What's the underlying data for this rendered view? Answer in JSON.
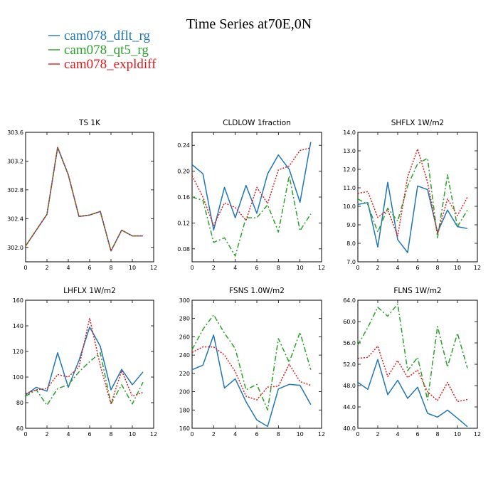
{
  "figure": {
    "title": "Time Series at70E,0N"
  },
  "legend": [
    {
      "label": "cam078_dflt_rg",
      "color": "#1f77b4",
      "dash": "solid"
    },
    {
      "label": "cam078_qt5_rg",
      "color": "#2ca02c",
      "dash": "dashdot"
    },
    {
      "label": "cam078_expldiff",
      "color": "#e31a1c",
      "dash": "dotted"
    }
  ],
  "chart_data": [
    {
      "type": "line",
      "title": "TS   1K",
      "x": [
        0,
        1,
        2,
        3,
        4,
        5,
        6,
        7,
        8,
        9,
        10,
        11
      ],
      "xlim": [
        0,
        12
      ],
      "xticks": [
        0,
        2,
        4,
        6,
        8,
        10,
        12
      ],
      "ylim": [
        301.8,
        303.6
      ],
      "yticks": [
        302.0,
        302.4,
        302.8,
        303.2,
        303.6
      ],
      "ytick_labels": [
        "302.0",
        "302.4",
        "302.8",
        "303.2",
        "303.6"
      ],
      "series": [
        {
          "name": "cam078_dflt_rg",
          "values": [
            302.02,
            302.24,
            302.46,
            303.39,
            303.01,
            302.43,
            302.45,
            302.5,
            301.95,
            302.24,
            302.16,
            302.16
          ]
        },
        {
          "name": "cam078_qt5_rg",
          "values": [
            302.02,
            302.24,
            302.46,
            303.39,
            303.01,
            302.43,
            302.45,
            302.5,
            301.95,
            302.24,
            302.16,
            302.16
          ]
        },
        {
          "name": "cam078_expldiff",
          "values": [
            302.02,
            302.24,
            302.46,
            303.39,
            303.01,
            302.43,
            302.45,
            302.5,
            301.95,
            302.24,
            302.16,
            302.16
          ]
        }
      ]
    },
    {
      "type": "line",
      "title": "CLDLOW   1fraction",
      "x": [
        0,
        1,
        2,
        3,
        4,
        5,
        6,
        7,
        8,
        9,
        10,
        11
      ],
      "xlim": [
        0,
        12
      ],
      "xticks": [
        0,
        2,
        4,
        6,
        8,
        10,
        12
      ],
      "ylim": [
        0.06,
        0.26
      ],
      "yticks": [
        0.08,
        0.12,
        0.16,
        0.2,
        0.24
      ],
      "ytick_labels": [
        "0.08",
        "0.12",
        "0.16",
        "0.20",
        "0.24"
      ],
      "series": [
        {
          "name": "cam078_dflt_rg",
          "values": [
            0.21,
            0.196,
            0.109,
            0.175,
            0.128,
            0.178,
            0.135,
            0.196,
            0.225,
            0.203,
            0.152,
            0.245
          ]
        },
        {
          "name": "cam078_qt5_rg",
          "values": [
            0.16,
            0.155,
            0.09,
            0.097,
            0.069,
            0.128,
            0.128,
            0.148,
            0.106,
            0.193,
            0.108,
            0.134
          ]
        },
        {
          "name": "cam078_expldiff",
          "values": [
            0.193,
            0.16,
            0.116,
            0.151,
            0.144,
            0.124,
            0.175,
            0.15,
            0.202,
            0.208,
            0.232,
            0.236
          ]
        }
      ]
    },
    {
      "type": "line",
      "title": "SHFLX   1W/m2",
      "x": [
        0,
        1,
        2,
        3,
        4,
        5,
        6,
        7,
        8,
        9,
        10,
        11
      ],
      "xlim": [
        0,
        12
      ],
      "xticks": [
        0,
        2,
        4,
        6,
        8,
        10,
        12
      ],
      "ylim": [
        7.0,
        14.0
      ],
      "yticks": [
        7.0,
        8.0,
        9.0,
        10.0,
        11.0,
        12.0,
        13.0,
        14.0
      ],
      "ytick_labels": [
        "7.0",
        "8.0",
        "9.0",
        "10.0",
        "11.0",
        "12.0",
        "13.0",
        "14.0"
      ],
      "series": [
        {
          "name": "cam078_dflt_rg",
          "values": [
            10.1,
            10.2,
            7.8,
            11.3,
            8.2,
            7.5,
            11.1,
            10.9,
            8.6,
            9.8,
            8.9,
            8.8
          ]
        },
        {
          "name": "cam078_qt5_rg",
          "values": [
            10.4,
            10.1,
            8.6,
            9.9,
            9.2,
            11.1,
            12.3,
            12.6,
            8.3,
            11.7,
            8.9,
            9.8
          ]
        },
        {
          "name": "cam078_expldiff",
          "values": [
            10.7,
            10.8,
            9.4,
            9.8,
            8.4,
            11.6,
            13.1,
            11.3,
            8.5,
            10.4,
            9.5,
            10.5
          ]
        }
      ]
    },
    {
      "type": "line",
      "title": "LHFLX   1W/m2",
      "x": [
        0,
        1,
        2,
        3,
        4,
        5,
        6,
        7,
        8,
        9,
        10,
        11
      ],
      "xlim": [
        0,
        12
      ],
      "xticks": [
        0,
        2,
        4,
        6,
        8,
        10,
        12
      ],
      "ylim": [
        60,
        160
      ],
      "yticks": [
        60,
        80,
        100,
        120,
        140,
        160
      ],
      "ytick_labels": [
        "60",
        "80",
        "100",
        "120",
        "140",
        "160"
      ],
      "series": [
        {
          "name": "cam078_dflt_rg",
          "values": [
            86,
            92,
            89,
            119,
            92,
            113,
            139,
            124,
            90,
            106,
            94,
            104
          ]
        },
        {
          "name": "cam078_qt5_rg",
          "values": [
            85,
            90,
            78,
            91,
            94,
            104,
            112,
            119,
            79,
            94,
            79,
            96
          ]
        },
        {
          "name": "cam078_expldiff",
          "values": [
            87,
            90,
            91,
            102,
            100,
            108,
            146,
            109,
            79,
            105,
            85,
            88
          ]
        }
      ]
    },
    {
      "type": "line",
      "title": "FSNS   1.0W/m2",
      "x": [
        0,
        1,
        2,
        3,
        4,
        5,
        6,
        7,
        8,
        9,
        10,
        11
      ],
      "xlim": [
        0,
        12
      ],
      "xticks": [
        0,
        2,
        4,
        6,
        8,
        10,
        12
      ],
      "ylim": [
        160,
        300
      ],
      "yticks": [
        160,
        180,
        200,
        220,
        240,
        260,
        280,
        300
      ],
      "ytick_labels": [
        "160",
        "180",
        "200",
        "220",
        "240",
        "260",
        "280",
        "300"
      ],
      "series": [
        {
          "name": "cam078_dflt_rg",
          "values": [
            224,
            229,
            262,
            204,
            214,
            189,
            169,
            162,
            203,
            208,
            207,
            186
          ]
        },
        {
          "name": "cam078_qt5_rg",
          "values": [
            246,
            268,
            284,
            264,
            247,
            202,
            208,
            180,
            258,
            232,
            265,
            224
          ]
        },
        {
          "name": "cam078_expldiff",
          "values": [
            243,
            249,
            249,
            240,
            222,
            195,
            191,
            205,
            206,
            230,
            211,
            207
          ]
        }
      ]
    },
    {
      "type": "line",
      "title": "FLNS   1W/m2",
      "x": [
        0,
        1,
        2,
        3,
        4,
        5,
        6,
        7,
        8,
        9,
        10,
        11
      ],
      "xlim": [
        0,
        12
      ],
      "xticks": [
        0,
        2,
        4,
        6,
        8,
        10,
        12
      ],
      "ylim": [
        40,
        64
      ],
      "yticks": [
        40.0,
        44.0,
        48.0,
        52.0,
        56.0,
        60.0,
        64.0
      ],
      "ytick_labels": [
        "40.0",
        "44.0",
        "48.0",
        "52.0",
        "56.0",
        "60.0",
        "64.0"
      ],
      "series": [
        {
          "name": "cam078_dflt_rg",
          "values": [
            48.6,
            47.3,
            52.9,
            46.3,
            49.0,
            45.6,
            47.7,
            42.8,
            42.1,
            43.4,
            41.9,
            40.3
          ]
        },
        {
          "name": "cam078_qt5_rg",
          "values": [
            55.6,
            58.9,
            62.7,
            61.0,
            63.3,
            50.8,
            53.3,
            45.3,
            59.1,
            51.5,
            57.8,
            51.3
          ]
        },
        {
          "name": "cam078_expldiff",
          "values": [
            53.1,
            53.3,
            55.4,
            49.7,
            52.7,
            49.5,
            50.9,
            46.8,
            45.2,
            48.6,
            45.0,
            45.4
          ]
        }
      ]
    }
  ]
}
